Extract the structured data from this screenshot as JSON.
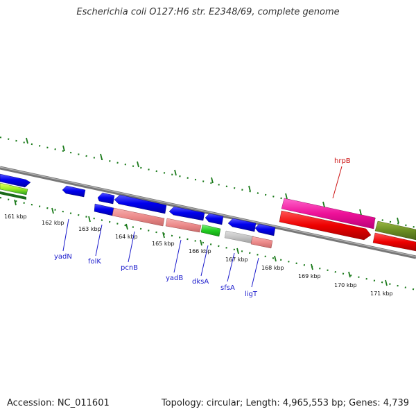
{
  "title": "Escherichia coli O127:H6 str. E2348/69, complete genome",
  "footer": {
    "accession": "Accession: NC_011601",
    "summary": "Topology: circular; Length: 4,965,553 bp; Genes: 4,739"
  },
  "colors": {
    "backbone": "#888888",
    "tick": "#1a7a1a",
    "gene_label_blue": "#1a1acc",
    "gene_label_red": "#cc1111"
  },
  "scale_labels": [
    "161 kbp",
    "162 kbp",
    "163 kbp",
    "164 kbp",
    "165 kbp",
    "166 kbp",
    "167 kbp",
    "168 kbp",
    "169 kbp",
    "170 kbp",
    "171 kbp"
  ],
  "gene_labels": [
    "yadN",
    "folK",
    "pcnB",
    "yadB",
    "dksA",
    "sfsA",
    "ligT",
    "hrpB"
  ]
}
